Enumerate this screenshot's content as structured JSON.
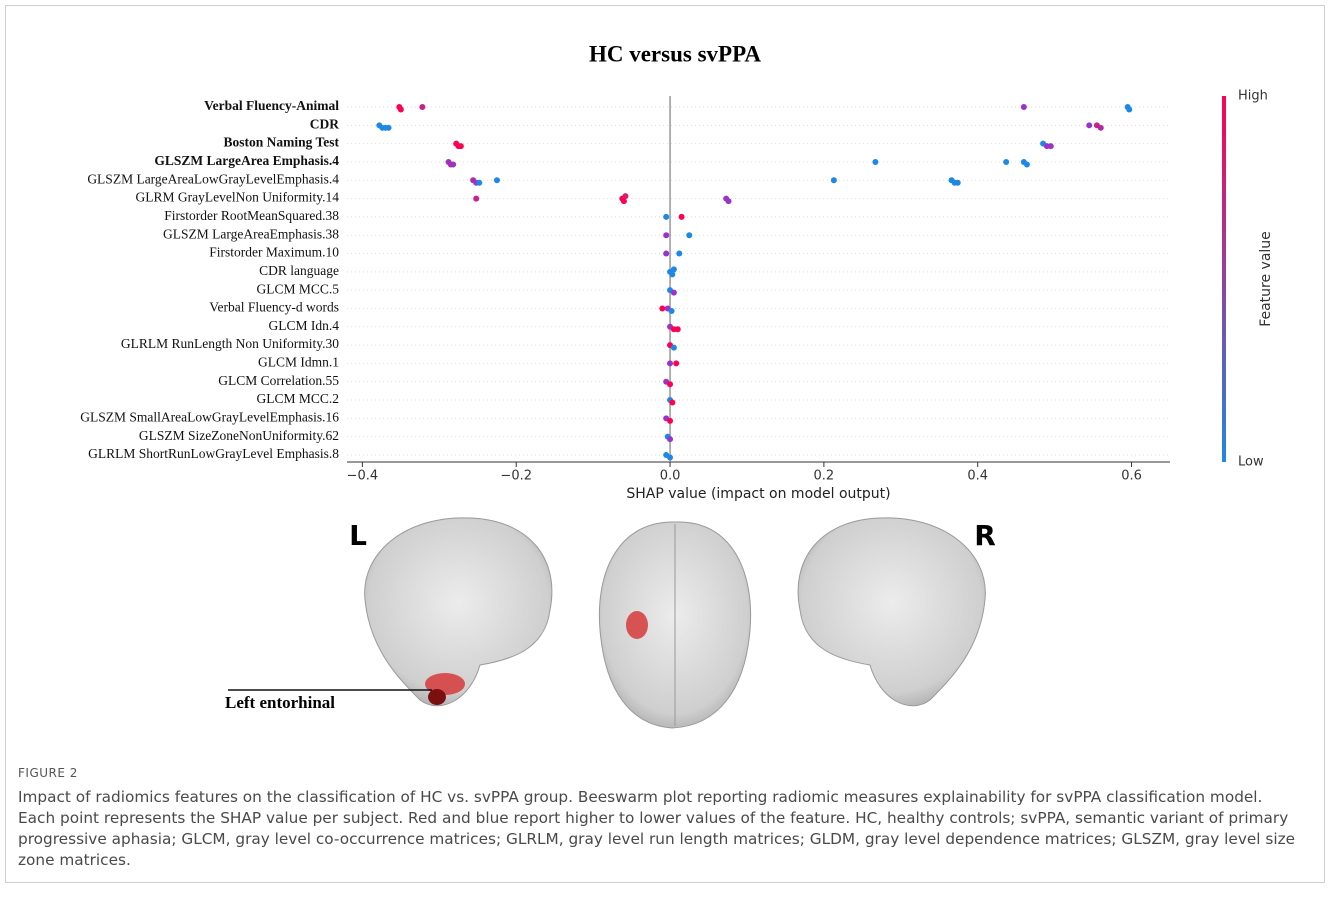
{
  "chart_data": {
    "type": "beeswarm",
    "title": "HC versus svPPA",
    "xlabel": "SHAP value (impact on model output)",
    "xlim": [
      -0.42,
      0.65
    ],
    "xticks": [
      {
        "value": -0.4,
        "label": "−0.4"
      },
      {
        "value": -0.2,
        "label": "−0.2"
      },
      {
        "value": 0,
        "label": "0.0"
      },
      0.2,
      0.4,
      0.6
    ],
    "zero_line": true,
    "colorbar": {
      "label": "Feature value",
      "high": "High",
      "low": "Low",
      "colors": [
        "#1e88e5",
        "#ff0052"
      ]
    },
    "series": [
      {
        "name": "Verbal Fluency-Animal",
        "bold": true,
        "values": [
          -0.352,
          -0.35,
          -0.322,
          0.46,
          0.595,
          0.597
        ],
        "colors": [
          "#ff0052",
          "#ff0052",
          "#c8208c",
          "#9a34c8",
          "#1e88e5",
          "#1e88e5"
        ]
      },
      {
        "name": "CDR",
        "bold": true,
        "values": [
          -0.378,
          -0.374,
          -0.37,
          -0.366,
          0.545,
          0.555,
          0.56
        ],
        "colors": [
          "#1e88e5",
          "#1e88e5",
          "#1e88e5",
          "#1e88e5",
          "#9a34c8",
          "#c8208c",
          "#b22aa0"
        ]
      },
      {
        "name": "Boston Naming Test",
        "bold": true,
        "values": [
          -0.278,
          -0.275,
          -0.272,
          0.485,
          0.49,
          0.495
        ],
        "colors": [
          "#ff0052",
          "#ff0052",
          "#ff0052",
          "#1e88e5",
          "#9a34c8",
          "#9a34c8"
        ]
      },
      {
        "name": "GLSZM LargeArea Emphasis.4",
        "bold": true,
        "values": [
          -0.288,
          -0.285,
          -0.282,
          0.267,
          0.437,
          0.46,
          0.464
        ],
        "colors": [
          "#9a34c8",
          "#b22aa0",
          "#9a34c8",
          "#1e88e5",
          "#1e88e5",
          "#1e88e5",
          "#1e88e5"
        ]
      },
      {
        "name": "GLSZM LargeAreaLowGrayLevelEmphasis.4",
        "values": [
          -0.256,
          -0.252,
          -0.248,
          -0.225,
          0.213,
          0.366,
          0.37,
          0.374
        ],
        "colors": [
          "#b22aa0",
          "#9a34c8",
          "#1e88e5",
          "#1e88e5",
          "#1e88e5",
          "#1e88e5",
          "#1e88e5",
          "#1e88e5"
        ]
      },
      {
        "name": "GLRM GrayLevelNon Uniformity.14",
        "values": [
          -0.252,
          -0.062,
          -0.06,
          -0.058,
          0.073,
          0.076
        ],
        "colors": [
          "#c8208c",
          "#ff0052",
          "#ff0052",
          "#e01a70",
          "#9a34c8",
          "#9a34c8"
        ]
      },
      {
        "name": "Firstorder RootMeanSquared.38",
        "values": [
          -0.005,
          0.015
        ],
        "colors": [
          "#1e88e5",
          "#ff0052"
        ]
      },
      {
        "name": "GLSZM LargeAreaEmphasis.38",
        "values": [
          -0.005,
          0.025
        ],
        "colors": [
          "#9a34c8",
          "#1e88e5"
        ]
      },
      {
        "name": "Firstorder Maximum.10",
        "values": [
          -0.005,
          0.012
        ],
        "colors": [
          "#9a34c8",
          "#1e88e5"
        ]
      },
      {
        "name": "CDR language",
        "values": [
          0,
          0.003,
          0.005
        ],
        "colors": [
          "#1e88e5",
          "#1e88e5",
          "#1e88e5"
        ]
      },
      {
        "name": "GLCM MCC.5",
        "values": [
          0,
          0.005
        ],
        "colors": [
          "#1e88e5",
          "#9a34c8"
        ]
      },
      {
        "name": "Verbal Fluency-d words",
        "values": [
          -0.01,
          -0.003,
          0.002
        ],
        "colors": [
          "#ff0052",
          "#9a34c8",
          "#1e88e5"
        ]
      },
      {
        "name": "GLCM Idn.4",
        "values": [
          0,
          0.005,
          0.01
        ],
        "colors": [
          "#9a34c8",
          "#ff0052",
          "#ff0052"
        ]
      },
      {
        "name": "GLRLM RunLength Non Uniformity.30",
        "values": [
          0,
          0.005
        ],
        "colors": [
          "#ff0052",
          "#1e88e5"
        ]
      },
      {
        "name": "GLCM Idmn.1",
        "values": [
          0,
          0.008
        ],
        "colors": [
          "#9a34c8",
          "#ff0052"
        ]
      },
      {
        "name": "GLCM Correlation.55",
        "values": [
          -0.005,
          0
        ],
        "colors": [
          "#9a34c8",
          "#ff0052"
        ]
      },
      {
        "name": "GLCM MCC.2",
        "values": [
          0,
          0.003
        ],
        "colors": [
          "#1e88e5",
          "#ff0052"
        ]
      },
      {
        "name": "GLSZM SmallAreaLowGrayLevelEmphasis.16",
        "values": [
          -0.005,
          0
        ],
        "colors": [
          "#9a34c8",
          "#ff0052"
        ]
      },
      {
        "name": "GLSZM SizeZoneNonUniformity.62",
        "values": [
          -0.003,
          0
        ],
        "colors": [
          "#1e88e5",
          "#9a34c8"
        ]
      },
      {
        "name": "GLRLM ShortRunLowGrayLevel Emphasis.8",
        "values": [
          -0.005,
          0
        ],
        "colors": [
          "#1e88e5",
          "#1e88e5"
        ]
      }
    ]
  },
  "figure": {
    "side_left": "L",
    "side_right": "R",
    "region": "Left entorhinal",
    "label": "FIGURE 2",
    "caption": "Impact of radiomics features on the classification of HC vs. svPPA group. Beeswarm plot reporting radiomic measures explainability for svPPA classification model. Each point represents the SHAP value per subject. Red and blue report higher to lower values of the feature. HC, healthy controls; svPPA, semantic variant of primary progressive aphasia; GLCM, gray level co-occurrence matrices; GLRLM, gray level run length matrices; GLDM, gray level dependence matrices; GLSZM, gray level size zone matrices."
  }
}
